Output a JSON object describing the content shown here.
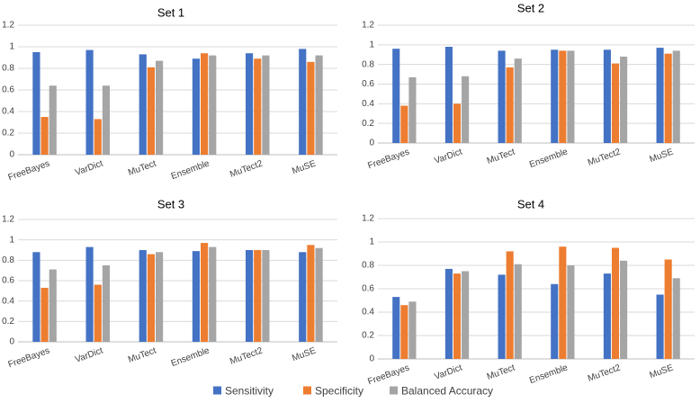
{
  "legend": [
    {
      "name": "Sensitivity",
      "color": "#4472c4"
    },
    {
      "name": "Specificity",
      "color": "#ed7d31"
    },
    {
      "name": "Balanced Accuracy",
      "color": "#a5a5a5"
    }
  ],
  "chart_data": [
    {
      "type": "bar",
      "title": "Set 1",
      "categories": [
        "FreeBayes",
        "VarDict",
        "MuTect",
        "Ensemble",
        "MuTect2",
        "MuSE"
      ],
      "ylim": [
        0,
        1.2
      ],
      "yticks": [
        "0",
        "0.2",
        "0.4",
        "0.6",
        "0.8",
        "1",
        "1.2"
      ],
      "series": [
        {
          "name": "Sensitivity",
          "values": [
            0.95,
            0.97,
            0.93,
            0.89,
            0.94,
            0.98
          ]
        },
        {
          "name": "Specificity",
          "values": [
            0.35,
            0.33,
            0.81,
            0.94,
            0.89,
            0.86
          ]
        },
        {
          "name": "Balanced Accuracy",
          "values": [
            0.64,
            0.64,
            0.87,
            0.92,
            0.92,
            0.92
          ]
        }
      ]
    },
    {
      "type": "bar",
      "title": "Set 2",
      "categories": [
        "FreeBayes",
        "VarDict",
        "MuTect",
        "Ensemble",
        "MuTect2",
        "MuSE"
      ],
      "ylim": [
        0,
        1.2
      ],
      "yticks": [
        "0",
        "0.2",
        "0.4",
        "0.6",
        "0.8",
        "1",
        "1.2"
      ],
      "series": [
        {
          "name": "Sensitivity",
          "values": [
            0.96,
            0.98,
            0.94,
            0.95,
            0.95,
            0.97
          ]
        },
        {
          "name": "Specificity",
          "values": [
            0.38,
            0.4,
            0.77,
            0.94,
            0.81,
            0.91
          ]
        },
        {
          "name": "Balanced Accuracy",
          "values": [
            0.67,
            0.68,
            0.86,
            0.94,
            0.88,
            0.94
          ]
        }
      ]
    },
    {
      "type": "bar",
      "title": "Set 3",
      "categories": [
        "FreeBayes",
        "VarDict",
        "MuTect",
        "Ensemble",
        "MuTect2",
        "MuSE"
      ],
      "ylim": [
        0,
        1.2
      ],
      "yticks": [
        "0",
        "0.2",
        "0.4",
        "0.6",
        "0.8",
        "1",
        "1.2"
      ],
      "series": [
        {
          "name": "Sensitivity",
          "values": [
            0.88,
            0.93,
            0.9,
            0.89,
            0.9,
            0.88
          ]
        },
        {
          "name": "Specificity",
          "values": [
            0.53,
            0.56,
            0.86,
            0.97,
            0.9,
            0.95
          ]
        },
        {
          "name": "Balanced Accuracy",
          "values": [
            0.71,
            0.75,
            0.88,
            0.93,
            0.9,
            0.92
          ]
        }
      ]
    },
    {
      "type": "bar",
      "title": "Set 4",
      "categories": [
        "FreeBayes",
        "VarDict",
        "MuTect",
        "Ensemble",
        "MuTect2",
        "MuSE"
      ],
      "ylim": [
        0,
        1.2
      ],
      "yticks": [
        "0",
        "0.2",
        "0.4",
        "0.6",
        "0.8",
        "1",
        "1.2"
      ],
      "series": [
        {
          "name": "Sensitivity",
          "values": [
            0.53,
            0.77,
            0.72,
            0.64,
            0.73,
            0.55
          ]
        },
        {
          "name": "Specificity",
          "values": [
            0.46,
            0.73,
            0.92,
            0.96,
            0.95,
            0.85
          ]
        },
        {
          "name": "Balanced Accuracy",
          "values": [
            0.49,
            0.75,
            0.81,
            0.8,
            0.84,
            0.69
          ]
        }
      ]
    }
  ]
}
